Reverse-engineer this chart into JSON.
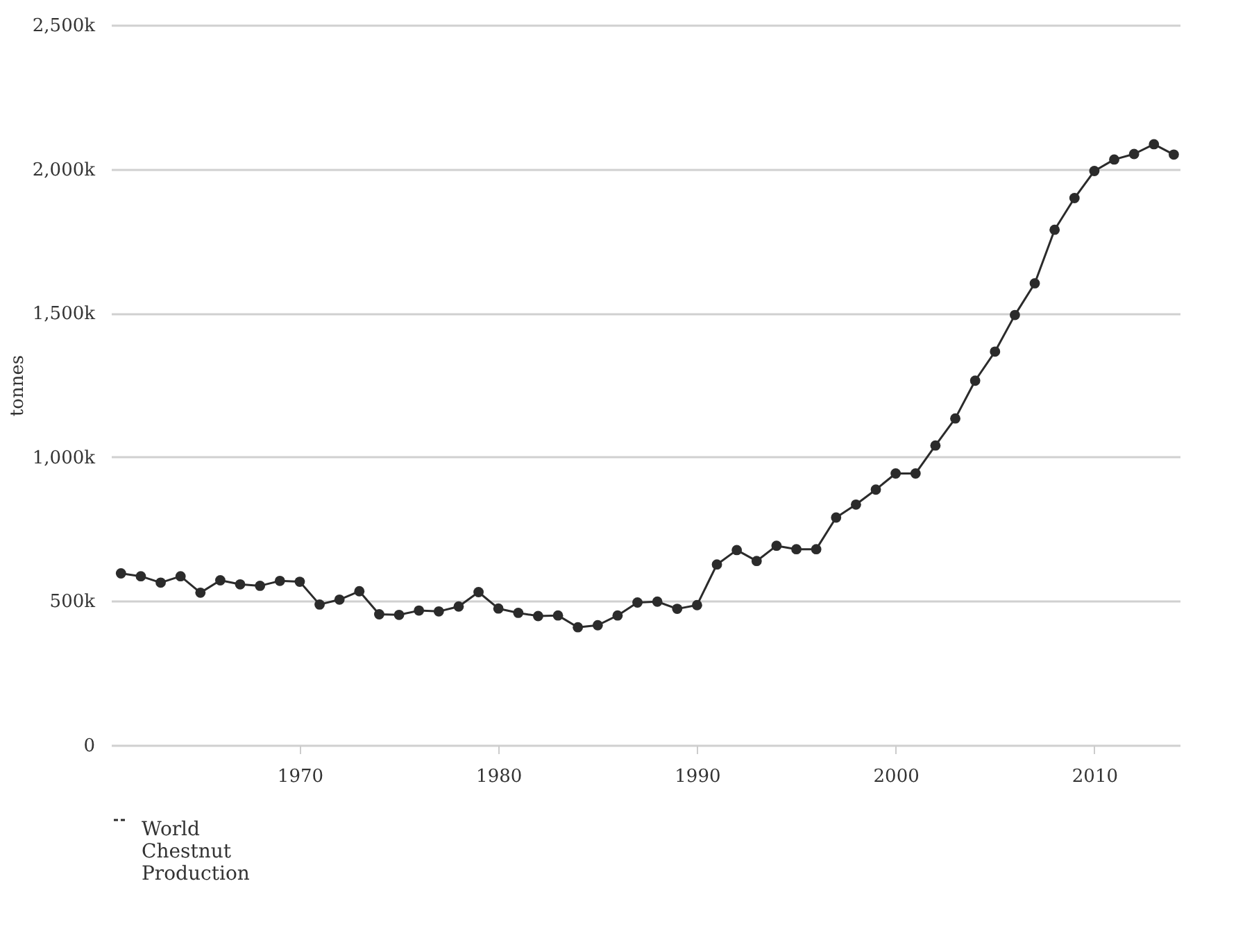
{
  "chart_data": {
    "type": "line",
    "ylabel": "tonnes",
    "x": [
      1961,
      1962,
      1963,
      1964,
      1965,
      1966,
      1967,
      1968,
      1969,
      1970,
      1971,
      1972,
      1973,
      1974,
      1975,
      1976,
      1977,
      1978,
      1979,
      1980,
      1981,
      1982,
      1983,
      1984,
      1985,
      1986,
      1987,
      1988,
      1989,
      1990,
      1991,
      1992,
      1993,
      1994,
      1995,
      1996,
      1997,
      1998,
      1999,
      2000,
      2001,
      2002,
      2003,
      2004,
      2005,
      2006,
      2007,
      2008,
      2009,
      2010,
      2011,
      2012,
      2013,
      2014
    ],
    "series": [
      {
        "name": "World Chestnut Production",
        "color": "#2b2b2b",
        "values": [
          596000,
          586000,
          564000,
          586000,
          529000,
          572000,
          558000,
          553000,
          570000,
          567000,
          488000,
          505000,
          534000,
          454000,
          452000,
          467000,
          464000,
          481000,
          531000,
          474000,
          459000,
          448000,
          450000,
          409000,
          416000,
          450000,
          495000,
          498000,
          473000,
          486000,
          627000,
          677000,
          639000,
          692000,
          680000,
          680000,
          790000,
          835000,
          887000,
          943000,
          943000,
          1040000,
          1134000,
          1265000,
          1366000,
          1493000,
          1603000,
          1789000,
          1899000,
          1993000,
          2033000,
          2052000,
          2086000,
          2050000
        ]
      }
    ],
    "xlim": [
      1960.5,
      2014.3
    ],
    "xticks": [
      1970,
      1980,
      1990,
      2000,
      2010
    ],
    "ylim": [
      0,
      2500000
    ],
    "yticks": [
      {
        "value": 0,
        "label": "0"
      },
      {
        "value": 500000,
        "label": "500k"
      },
      {
        "value": 1000000,
        "label": "1,000k"
      },
      {
        "value": 1500000,
        "label": "1,500k"
      },
      {
        "value": 2000000,
        "label": "2,000k"
      },
      {
        "value": 2500000,
        "label": "2,500k"
      }
    ],
    "grid": "y",
    "legend": "bottom",
    "marker": "circle",
    "line_style": "solid"
  }
}
